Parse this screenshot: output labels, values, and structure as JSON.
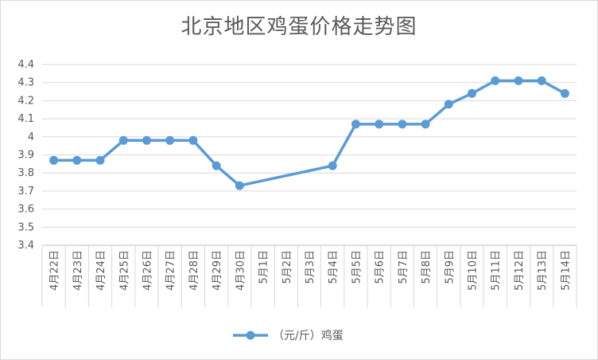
{
  "chart_data": {
    "type": "line",
    "title": "北京地区鸡蛋价格走势图",
    "xlabel": "",
    "ylabel": "",
    "categories": [
      "4月22日",
      "4月23日",
      "4月24日",
      "4月25日",
      "4月26日",
      "4月27日",
      "4月28日",
      "4月29日",
      "4月30日",
      "5月1日",
      "5月2日",
      "5月3日",
      "5月4日",
      "5月5日",
      "5月6日",
      "5月7日",
      "5月8日",
      "5月9日",
      "5月10日",
      "5月11日",
      "5月12日",
      "5月13日",
      "5月14日"
    ],
    "series": [
      {
        "name": "（元/斤）鸡蛋",
        "color": "#5b9bd5",
        "values": [
          3.87,
          3.87,
          3.87,
          3.98,
          3.98,
          3.98,
          3.98,
          3.84,
          3.73,
          null,
          null,
          null,
          3.84,
          4.07,
          4.07,
          4.07,
          4.07,
          4.18,
          4.24,
          4.31,
          4.31,
          4.31,
          4.24
        ]
      }
    ],
    "ylim": [
      3.4,
      4.4
    ],
    "yticks": [
      "3.4",
      "3.5",
      "3.6",
      "3.7",
      "3.8",
      "3.9",
      "4",
      "4.1",
      "4.2",
      "4.3",
      "4.4"
    ],
    "grid": true,
    "legend_position": "bottom"
  }
}
